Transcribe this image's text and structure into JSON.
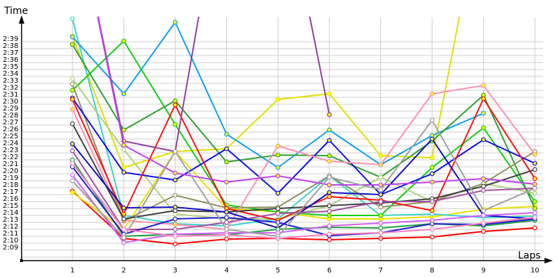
{
  "chart_data": {
    "type": "line",
    "xlabel": "Laps",
    "ylabel": "Time",
    "x": [
      1,
      2,
      3,
      4,
      5,
      6,
      7,
      8,
      9,
      10
    ],
    "xlim": [
      0.1,
      10.3
    ],
    "ylim_seconds": [
      127,
      164.5
    ],
    "y_unit": "seconds (shown as m:ss)",
    "y_ticks": [
      129,
      130,
      131,
      132,
      133,
      134,
      135,
      136,
      137,
      138,
      139,
      140,
      141,
      142,
      143,
      144,
      145,
      146,
      147,
      148,
      149,
      150,
      151,
      152,
      153,
      154,
      155,
      156,
      157,
      158,
      159
    ],
    "y_tick_labels": [
      "2:09",
      "2:10",
      "2:11",
      "2:12",
      "2:13",
      "2:14",
      "2:15",
      "2:16",
      "2:17",
      "2:18",
      "2:19",
      "2:20",
      "2:21",
      "2:22",
      "2:23",
      "2:24",
      "2:25",
      "2:26",
      "2:27",
      "2:28",
      "2:29",
      "2:30",
      "2:31",
      "2:32",
      "2:33",
      "2:34",
      "2:35",
      "2:36",
      "2:37",
      "2:38",
      "2:39"
    ],
    "x_tick_labels": [
      "1",
      "2",
      "3",
      "4",
      "5",
      "6",
      "7",
      "8",
      "9",
      "10"
    ],
    "grid": true,
    "legend": "none",
    "series": [
      {
        "color": "#ff0000",
        "marker": "#ffffff",
        "values": [
          137.0,
          130.2,
          129.4,
          130.1,
          130.2,
          130.0,
          130.2,
          130.4,
          131.2,
          131.7
        ]
      },
      {
        "color": "#e0e000",
        "marker": "#ffff00",
        "values": [
          159.3,
          140.4,
          142.7,
          143.1,
          150.2,
          151.0,
          142.1,
          141.8,
          180,
          null
        ]
      },
      {
        "color": "#e8e000",
        "marker": "#ffff00",
        "values": [
          136.8,
          131.5,
          142.7,
          134.5,
          134.0,
          133.0,
          133.0,
          133.3,
          134.4,
          134.8
        ]
      },
      {
        "color": "#40d0d0",
        "marker": "#ffffff",
        "values": [
          161.8,
          133.5,
          132.3,
          132.0,
          133.0,
          139.2,
          133.5,
          133.7,
          133.2,
          133.4
        ]
      },
      {
        "color": "#10a0f0",
        "marker": "#ffff00",
        "values": [
          159.2,
          151.0,
          161.3,
          145.2,
          140.4,
          145.8,
          140.8,
          145.0,
          148.2,
          null
        ]
      },
      {
        "color": "#10d010",
        "marker": "#ffff00",
        "values": [
          151.5,
          158.6,
          146.6,
          135.0,
          134.0,
          133.5,
          133.5,
          140.4,
          146.1,
          135.5
        ]
      },
      {
        "color": "#30a030",
        "marker": "#ffff00",
        "values": [
          158.1,
          145.8,
          150.0,
          141.2,
          142.2,
          142.1,
          139.0,
          144.2,
          150.8,
          134.5
        ]
      },
      {
        "color": "#b0d080",
        "marker": "#ffffff",
        "values": [
          153.2,
          143.0,
          133.7,
          133.0,
          133.0,
          134.9,
          139.0,
          135.5,
          138.1,
          136.7
        ]
      },
      {
        "color": "#909060",
        "marker": "#ffffff",
        "values": [
          152.4,
          132.7,
          136.4,
          134.6,
          134.7,
          139.2,
          134.7,
          135.5,
          138.1,
          142.7
        ]
      },
      {
        "color": "#1010f0",
        "marker": "#ffff00",
        "values": [
          150.4,
          139.7,
          138.6,
          143.1,
          136.7,
          144.3,
          136.5,
          139.5,
          144.4,
          141.0
        ]
      },
      {
        "color": "#ff1010",
        "marker": "#ffff00",
        "values": [
          150.2,
          133.7,
          149.4,
          134.5,
          132.8,
          136.2,
          135.7,
          134.2,
          150.3,
          138.8
        ]
      },
      {
        "color": "#ff90b0",
        "marker": "#ffff00",
        "values": [
          148.8,
          132.8,
          132.2,
          131.5,
          143.5,
          141.3,
          140.8,
          151.0,
          152.2,
          142.3
        ]
      },
      {
        "color": "#404040",
        "marker": "#ffffff",
        "values": [
          146.7,
          133.0,
          134.2,
          134.0,
          134.5,
          134.9,
          135.3,
          135.9,
          137.7,
          140.1
        ]
      },
      {
        "color": "#1010c0",
        "marker": "#ffff00",
        "values": [
          143.8,
          134.6,
          134.7,
          134.0,
          131.7,
          136.8,
          136.5,
          144.5,
          133.5,
          133.0
        ]
      },
      {
        "color": "#9040a0",
        "marker": "#ffff00",
        "values": [
          180,
          144.2,
          142.7,
          185,
          185,
          148.0,
          null,
          null,
          null,
          null
        ]
      },
      {
        "color": "#c040f0",
        "marker": "#ffff00",
        "values": [
          180,
          143.6,
          139.6,
          138.3,
          139.2,
          137.9,
          137.9,
          138.3,
          138.8,
          138.0
        ]
      },
      {
        "color": "#a050a0",
        "marker": "#ffffff",
        "values": [
          142.8,
          131.5,
          131.5,
          132.5,
          133.8,
          134.1,
          135.5,
          135.5,
          137.1,
          137.4
        ]
      },
      {
        "color": "#20a040",
        "marker": "#ffffff",
        "values": [
          141.5,
          130.5,
          130.8,
          130.7,
          131.5,
          131.8,
          131.7,
          132.3,
          132.0,
          132.8
        ]
      },
      {
        "color": "#2020d0",
        "marker": "#ffffff",
        "values": [
          140.5,
          130.8,
          133.0,
          133.2,
          132.5,
          130.6,
          131.0,
          132.3,
          132.2,
          133.0
        ]
      },
      {
        "color": "#d060ff",
        "marker": "#ffffff",
        "values": [
          139.3,
          129.6,
          130.8,
          131.0,
          131.0,
          132.0,
          132.4,
          132.8,
          133.5,
          133.9
        ]
      },
      {
        "color": "#a0a0a0",
        "marker": "#ffffff",
        "values": [
          138.5,
          130.3,
          142.7,
          131.5,
          130.5,
          139.0,
          137.2,
          147.2,
          134.2,
          137.4
        ]
      },
      {
        "color": "#ff80c0",
        "marker": "#ffffff",
        "values": [
          141.0,
          131.5,
          130.5,
          130.7,
          130.2,
          130.8,
          131.0,
          131.5,
          132.4,
          133.2
        ]
      }
    ]
  }
}
